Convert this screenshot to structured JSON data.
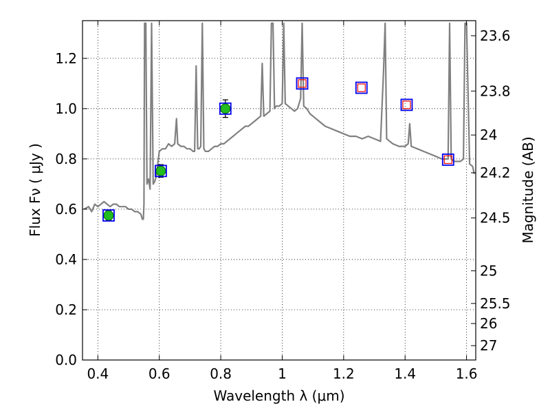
{
  "chart_data": {
    "type": "scatter",
    "xlabel": "Wavelength  λ (μm)",
    "ylabel_left": "Flux  Fν  ( μJy )",
    "ylabel_right": "Magnitude (AB)",
    "xlim": [
      0.35,
      1.63
    ],
    "ylim": [
      0.0,
      1.35
    ],
    "grid": true,
    "x_ticks": [
      0.4,
      0.6,
      0.8,
      1.0,
      1.2,
      1.4,
      1.6
    ],
    "x_tick_labels": [
      "0.4",
      "0.6",
      "0.8",
      "1",
      "1.2",
      "1.4",
      "1.6"
    ],
    "y_ticks": [
      0.0,
      0.2,
      0.4,
      0.6,
      0.8,
      1.0,
      1.2
    ],
    "y_tick_labels": [
      "0.0",
      "0.2",
      "0.4",
      "0.6",
      "0.8",
      "1.0",
      "1.2"
    ],
    "right_ticks": [
      {
        "flux": 1.29,
        "label": "23.6"
      },
      {
        "flux": 1.07,
        "label": "23.8"
      },
      {
        "flux": 0.895,
        "label": "24"
      },
      {
        "flux": 0.745,
        "label": "24.2"
      },
      {
        "flux": 0.565,
        "label": "24.5"
      },
      {
        "flux": 0.355,
        "label": "25"
      },
      {
        "flux": 0.225,
        "label": "25.5"
      },
      {
        "flux": 0.145,
        "label": "26"
      },
      {
        "flux": 0.057,
        "label": "27"
      }
    ],
    "series": [
      {
        "style": "line",
        "color": "#808080",
        "x": [
          0.355,
          0.37,
          0.38,
          0.39,
          0.4,
          0.41,
          0.42,
          0.43,
          0.44,
          0.45,
          0.46,
          0.47,
          0.48,
          0.49,
          0.5,
          0.51,
          0.52,
          0.53,
          0.54,
          0.545,
          0.548,
          0.55,
          0.552,
          0.556,
          0.56,
          0.565,
          0.57,
          0.575,
          0.58,
          0.585,
          0.59,
          0.6,
          0.61,
          0.62,
          0.63,
          0.64,
          0.65,
          0.656,
          0.66,
          0.67,
          0.68,
          0.69,
          0.7,
          0.71,
          0.715,
          0.72,
          0.725,
          0.73,
          0.735,
          0.74,
          0.745,
          0.75,
          0.76,
          0.77,
          0.78,
          0.79,
          0.8,
          0.81,
          0.82,
          0.83,
          0.84,
          0.85,
          0.86,
          0.87,
          0.88,
          0.89,
          0.9,
          0.91,
          0.92,
          0.93,
          0.935,
          0.94,
          0.95,
          0.96,
          0.965,
          0.97,
          0.975,
          0.98,
          0.99,
          1.0,
          1.005,
          1.01,
          1.02,
          1.03,
          1.04,
          1.05,
          1.06,
          1.065,
          1.07,
          1.08,
          1.09,
          1.1,
          1.12,
          1.14,
          1.16,
          1.18,
          1.2,
          1.22,
          1.24,
          1.26,
          1.28,
          1.3,
          1.32,
          1.33,
          1.335,
          1.34,
          1.35,
          1.36,
          1.38,
          1.4,
          1.41,
          1.415,
          1.42,
          1.44,
          1.46,
          1.48,
          1.5,
          1.52,
          1.53,
          1.54,
          1.545,
          1.55,
          1.56,
          1.58,
          1.59,
          1.595,
          1.6,
          1.61,
          1.62,
          1.625
        ],
        "y": [
          0.6,
          0.61,
          0.59,
          0.62,
          0.61,
          0.62,
          0.63,
          0.62,
          0.61,
          0.62,
          0.62,
          0.61,
          0.61,
          0.61,
          0.6,
          0.6,
          0.59,
          0.59,
          0.58,
          0.56,
          0.56,
          0.62,
          1.34,
          1.34,
          0.7,
          0.72,
          0.68,
          1.34,
          0.7,
          0.71,
          0.73,
          0.83,
          0.84,
          0.84,
          0.86,
          0.85,
          0.86,
          0.96,
          0.86,
          0.85,
          0.85,
          0.84,
          0.84,
          0.83,
          0.83,
          1.17,
          0.84,
          0.84,
          0.85,
          1.34,
          0.84,
          0.83,
          0.83,
          0.84,
          0.85,
          0.85,
          0.86,
          0.86,
          0.87,
          0.88,
          0.89,
          0.9,
          0.91,
          0.92,
          0.93,
          0.93,
          0.94,
          0.95,
          0.96,
          0.97,
          1.18,
          0.97,
          0.98,
          0.99,
          1.34,
          1.34,
          1.0,
          1.01,
          1.01,
          1.02,
          1.34,
          1.02,
          1.01,
          1.0,
          0.99,
          1.0,
          1.04,
          1.34,
          1.01,
          1.0,
          0.98,
          0.97,
          0.95,
          0.93,
          0.92,
          0.91,
          0.9,
          0.89,
          0.89,
          0.88,
          0.89,
          0.88,
          0.87,
          1.15,
          1.34,
          0.88,
          0.87,
          0.86,
          0.85,
          0.85,
          0.86,
          0.94,
          0.85,
          0.84,
          0.83,
          0.82,
          0.81,
          0.8,
          0.8,
          0.8,
          1.34,
          0.8,
          0.79,
          0.79,
          0.8,
          1.34,
          1.34,
          0.78,
          0.77,
          0.74
        ]
      },
      {
        "style": "markers",
        "marker": "circle",
        "color": "#22bb22",
        "edge": "#006600",
        "x": [
          0.435,
          0.605,
          0.815
        ],
        "y": [
          0.575,
          0.752,
          1.0
        ],
        "yerr": [
          0.02,
          0.025,
          0.035
        ]
      },
      {
        "style": "markers",
        "marker": "square-open",
        "color": "#0000ee",
        "size": "large",
        "x": [
          0.435,
          0.605,
          0.815,
          1.065,
          1.258,
          1.405,
          1.54
        ],
        "y": [
          0.575,
          0.752,
          1.0,
          1.1,
          1.083,
          1.015,
          0.797
        ]
      },
      {
        "style": "markers",
        "marker": "square-open",
        "color": "#ee0000",
        "size": "small",
        "x": [
          1.065,
          1.258,
          1.405,
          1.54
        ],
        "y": [
          1.1,
          1.083,
          1.015,
          0.797
        ]
      }
    ]
  }
}
